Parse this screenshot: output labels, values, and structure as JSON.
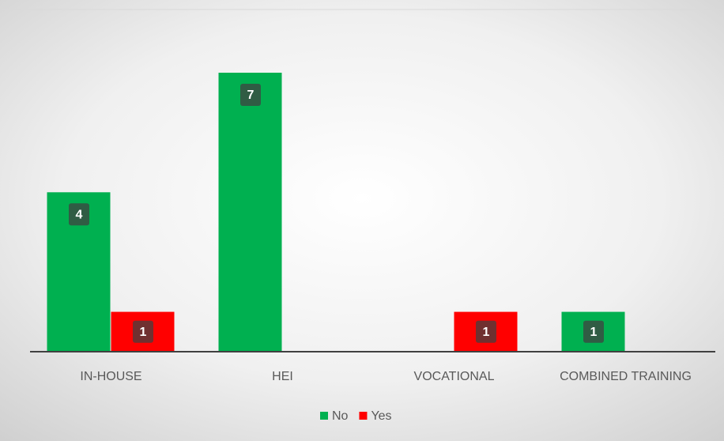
{
  "chart_data": {
    "type": "bar",
    "categories": [
      "IN-HOUSE",
      "HEI",
      "VOCATIONAL",
      "COMBINED TRAINING"
    ],
    "series": [
      {
        "name": "No",
        "color": "#00b050",
        "values": [
          4,
          7,
          null,
          1
        ]
      },
      {
        "name": "Yes",
        "color": "#ff0000",
        "values": [
          1,
          null,
          1,
          null
        ]
      }
    ],
    "legend": "bottom"
  }
}
